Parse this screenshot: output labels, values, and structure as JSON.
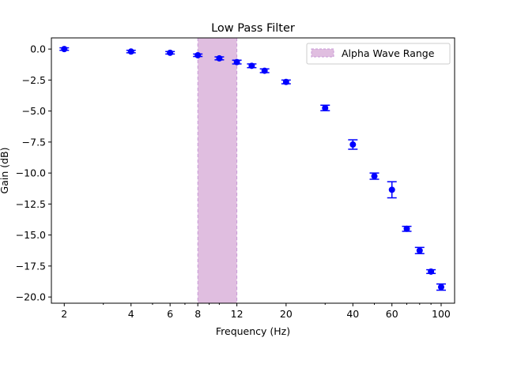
{
  "chart_data": {
    "type": "scatter",
    "title": "Low Pass Filter",
    "xlabel": "Frequency (Hz)",
    "ylabel": "Gain (dB)",
    "xscale": "log",
    "xlim": [
      1.75,
      115
    ],
    "ylim": [
      -20.5,
      0.9
    ],
    "xticks": [
      2,
      4,
      6,
      8,
      12,
      20,
      40,
      60,
      100
    ],
    "yticks": [
      0.0,
      -2.5,
      -5.0,
      -7.5,
      -10.0,
      -12.5,
      -15.0,
      -17.5,
      -20.0
    ],
    "grid": false,
    "legend": "top-right",
    "colors": {
      "series": "#0000ff",
      "band_fill": "#e0bee0",
      "band_edge": "#c799d6"
    },
    "band": {
      "name": "Alpha Wave Range",
      "x0": 8,
      "x1": 12
    },
    "series": [
      {
        "x": [
          2,
          4,
          6,
          8,
          10,
          12,
          14,
          16,
          20,
          30,
          40,
          50,
          60,
          70,
          80,
          90,
          100
        ],
        "y": [
          0.0,
          -0.2,
          -0.3,
          -0.5,
          -0.75,
          -1.05,
          -1.35,
          -1.75,
          -2.65,
          -4.75,
          -7.7,
          -10.25,
          -11.35,
          -14.5,
          -16.25,
          -17.95,
          -19.2
        ],
        "yerr": [
          0.1,
          0.1,
          0.1,
          0.1,
          0.12,
          0.15,
          0.15,
          0.15,
          0.15,
          0.22,
          0.38,
          0.25,
          0.65,
          0.2,
          0.25,
          0.15,
          0.25
        ]
      }
    ]
  }
}
